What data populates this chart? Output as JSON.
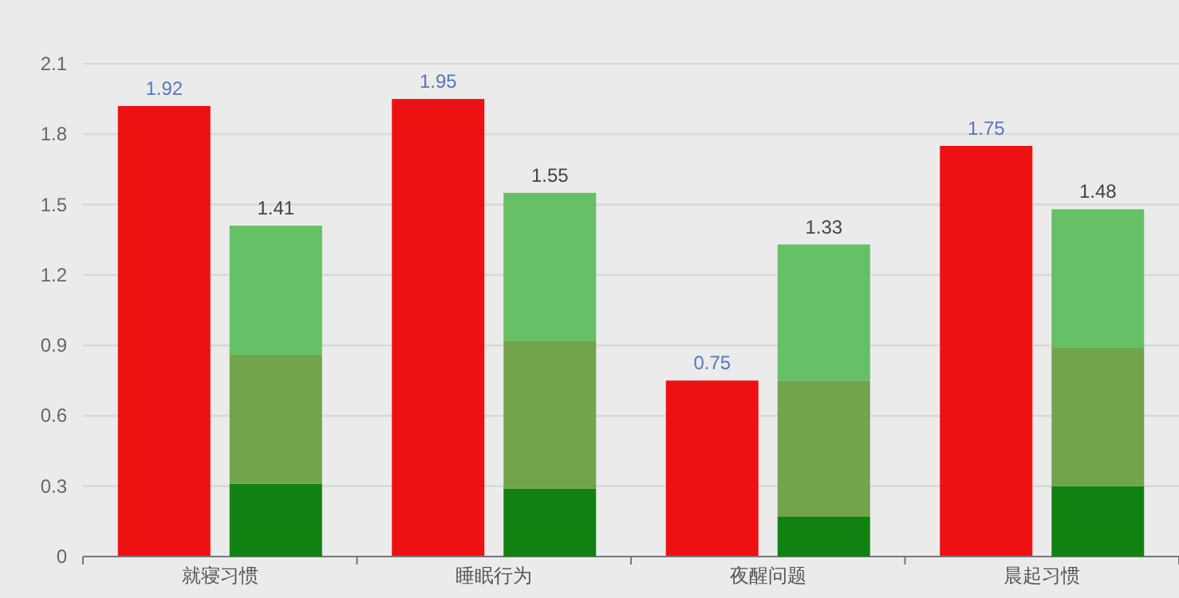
{
  "chart_data": [
    {
      "type": "bar",
      "categories": [
        "就寝习惯",
        "睡眠行为",
        "夜醒问题",
        "晨起习惯"
      ],
      "series": [
        {
          "color": "#ee1111",
          "values": [
            1.92,
            1.95,
            0.75,
            1.75
          ],
          "value_labels": [
            "1.92",
            "1.95",
            "0.75",
            "1.75"
          ]
        }
      ],
      "ylim": [
        0,
        2.1
      ],
      "yticks": [
        0,
        0.3,
        0.6,
        0.9,
        1.2,
        1.5,
        1.8,
        2.1
      ],
      "grid": "y"
    },
    {
      "type": "bar",
      "stacked": true,
      "categories": [
        null,
        null,
        null,
        null
      ],
      "series": [
        {
          "color": "#118211",
          "values": [
            0.31,
            0.29,
            0.17,
            0.3
          ]
        },
        {
          "color": "#72a44c",
          "values": [
            0.55,
            0.63,
            0.58,
            0.59
          ]
        },
        {
          "color": "#66c066",
          "values": [
            0.55,
            0.63,
            0.58,
            0.59
          ]
        }
      ],
      "totals": [
        "1.41",
        "1.55",
        "1.33",
        "1.48"
      ],
      "ylim": [
        0,
        2.1
      ],
      "yticks": [
        0,
        0.3,
        0.6,
        0.9,
        1.2,
        1.5,
        1.8,
        2.1
      ],
      "grid": "y",
      "tick_labels": false
    }
  ]
}
